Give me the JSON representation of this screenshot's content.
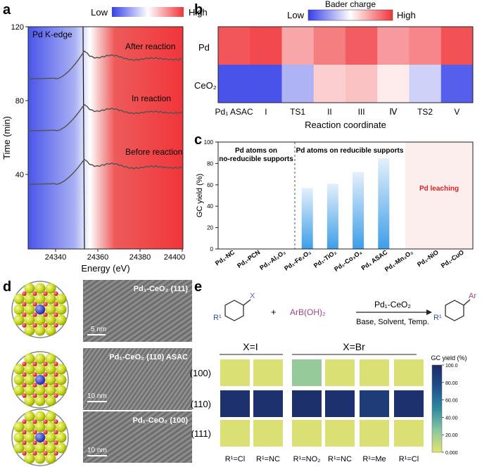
{
  "panels": {
    "a": {
      "label": "a",
      "colorbar": {
        "low": "Low",
        "high": "High"
      },
      "edge_label": "Pd K-edge",
      "curve_labels": [
        "After reaction",
        "In reaction",
        "Before reaction"
      ],
      "xlabel": "Energy (eV)",
      "ylabel": "Time (min)",
      "xticks": [
        "24340",
        "24360",
        "24380",
        "24400"
      ],
      "yticks": [
        "40",
        "80",
        "120"
      ]
    },
    "b": {
      "label": "b",
      "colorbar": {
        "title": "Bader charge",
        "low": "Low",
        "high": "High"
      },
      "xlabel": "Reaction coordinate",
      "rows": [
        "Pd",
        "CeO₂"
      ],
      "columns": [
        "Pd₁ ASAC",
        "I",
        "TS1",
        "II",
        "III",
        "Ⅳ",
        "TS2",
        "V"
      ]
    },
    "c": {
      "label": "c",
      "ylabel": "GC yield (%)",
      "yticks": [
        "0",
        "20",
        "40",
        "60",
        "80",
        "100"
      ],
      "group_labels": [
        "Pd atoms on",
        "no-reducible supports",
        "Pd atoms on reducible supports",
        "Pd leaching"
      ],
      "categories": [
        "Pd₁-NC",
        "Pd₁-PCN",
        "Pd₁-Al₂O₃",
        "Pd₁-Fe₂O₃",
        "Pd₁-TiO₂",
        "Pd₁-Co₃O₄",
        "Pd₁ ASAC",
        "Pd₁-Mn₂O₃",
        "Pd₁-NiO",
        "Pd₁-CuO"
      ]
    },
    "d": {
      "label": "d",
      "images": [
        "Pd₁-CeO₂ (111)",
        "Pd₁-CeO₂ (110) ASAC",
        "Pd₁-CeO₂ (100)"
      ],
      "scales": [
        "5 nm",
        "10 nm",
        "10 nm"
      ]
    },
    "e": {
      "label": "e",
      "reaction": {
        "plus": "+",
        "reagent": "ArB(OH)₂",
        "catalyst": "Pd₁-CeO₂",
        "conditions": "Base, Solvent, Temp.",
        "sub_x": "X",
        "sub_r": "R¹",
        "prod_ar": "Ar",
        "prod_r": "R¹"
      },
      "group_headers": [
        "X=I",
        "X=Br"
      ],
      "rows": [
        "(100)",
        "(110)",
        "(111)"
      ],
      "columns": [
        "R¹=Cl",
        "R¹=NC",
        "R¹=NO₂",
        "R¹=NC",
        "R¹=Me",
        "R¹=Cl"
      ],
      "colorbar_title": "GC yield (%)",
      "colorbar_ticks": [
        "100.0",
        "80.00",
        "60.00",
        "40.00",
        "20.00",
        "0.000"
      ]
    }
  },
  "chart_data": [
    {
      "type": "heatmap",
      "title": "Bader charge",
      "xlabel": "Reaction coordinate",
      "rows": [
        "Pd",
        "CeO₂"
      ],
      "columns": [
        "Pd₁ ASAC",
        "I",
        "TS1",
        "II",
        "III",
        "Ⅳ",
        "TS2",
        "V"
      ],
      "values": [
        [
          0.92,
          0.95,
          0.72,
          0.82,
          0.9,
          0.75,
          0.8,
          0.93
        ],
        [
          0.05,
          0.05,
          0.3,
          0.62,
          0.65,
          0.55,
          0.38,
          0.08
        ]
      ],
      "scale": [
        0,
        1
      ]
    },
    {
      "type": "bar",
      "ylabel": "GC yield (%)",
      "ylim": [
        0,
        100
      ],
      "categories": [
        "Pd₁-NC",
        "Pd₁-PCN",
        "Pd₁-Al₂O₃",
        "Pd₁-Fe₂O₃",
        "Pd₁-TiO₂",
        "Pd₁-Co₃O₄",
        "Pd₁ ASAC",
        "Pd₁-Mn₂O₃",
        "Pd₁-NiO",
        "Pd₁-CuO"
      ],
      "values": [
        0,
        0,
        0,
        57,
        61,
        72,
        85,
        0,
        0,
        0
      ]
    },
    {
      "type": "heatmap",
      "title": "GC yield (%)",
      "rows": [
        "(100)",
        "(110)",
        "(111)"
      ],
      "columns": [
        "R¹=Cl",
        "R¹=NC",
        "R¹=NO₂",
        "R¹=NC",
        "R¹=Me",
        "R¹=Cl"
      ],
      "values": [
        [
          3,
          3,
          22,
          3,
          3,
          3
        ],
        [
          95,
          95,
          96,
          95,
          88,
          95
        ],
        [
          3,
          3,
          3,
          3,
          3,
          3
        ]
      ],
      "scale": [
        0,
        100
      ]
    }
  ],
  "colors": {
    "low": "#3540e8",
    "high": "#f0353a",
    "bar_top": "#e4f0fb",
    "bar_bottom": "#3d9ee8",
    "leach_bg": "#fdeeee",
    "leach_text": "#e02020",
    "e_low": "#e5e36e",
    "e_high": "#1b2a66"
  }
}
